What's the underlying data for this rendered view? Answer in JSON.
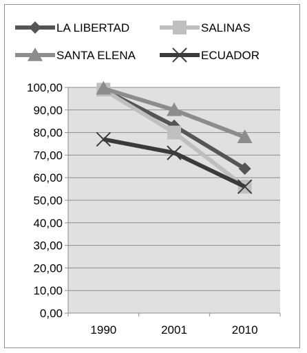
{
  "chart_data": {
    "type": "line",
    "categories": [
      "1990",
      "2001",
      "2010"
    ],
    "ylim": [
      0,
      100
    ],
    "y_ticks": [
      "0,00",
      "10,00",
      "20,00",
      "30,00",
      "40,00",
      "50,00",
      "60,00",
      "70,00",
      "80,00",
      "90,00",
      "100,00"
    ],
    "y_tick_values": [
      0,
      10,
      20,
      30,
      40,
      50,
      60,
      70,
      80,
      90,
      100
    ],
    "grid": true,
    "legend_position": "top",
    "series": [
      {
        "name": "LA LIBERTAD",
        "values": [
          99,
          83,
          64
        ],
        "color": "#555555",
        "marker": "diamond"
      },
      {
        "name": "SALINAS",
        "values": [
          99,
          80,
          56
        ],
        "color": "#bfbfbf",
        "marker": "square"
      },
      {
        "name": "SANTA ELENA",
        "values": [
          99.5,
          90,
          78
        ],
        "color": "#8c8c8c",
        "marker": "triangle"
      },
      {
        "name": "ECUADOR",
        "values": [
          77,
          71,
          56
        ],
        "color": "#3a3a3a",
        "marker": "x"
      }
    ]
  }
}
